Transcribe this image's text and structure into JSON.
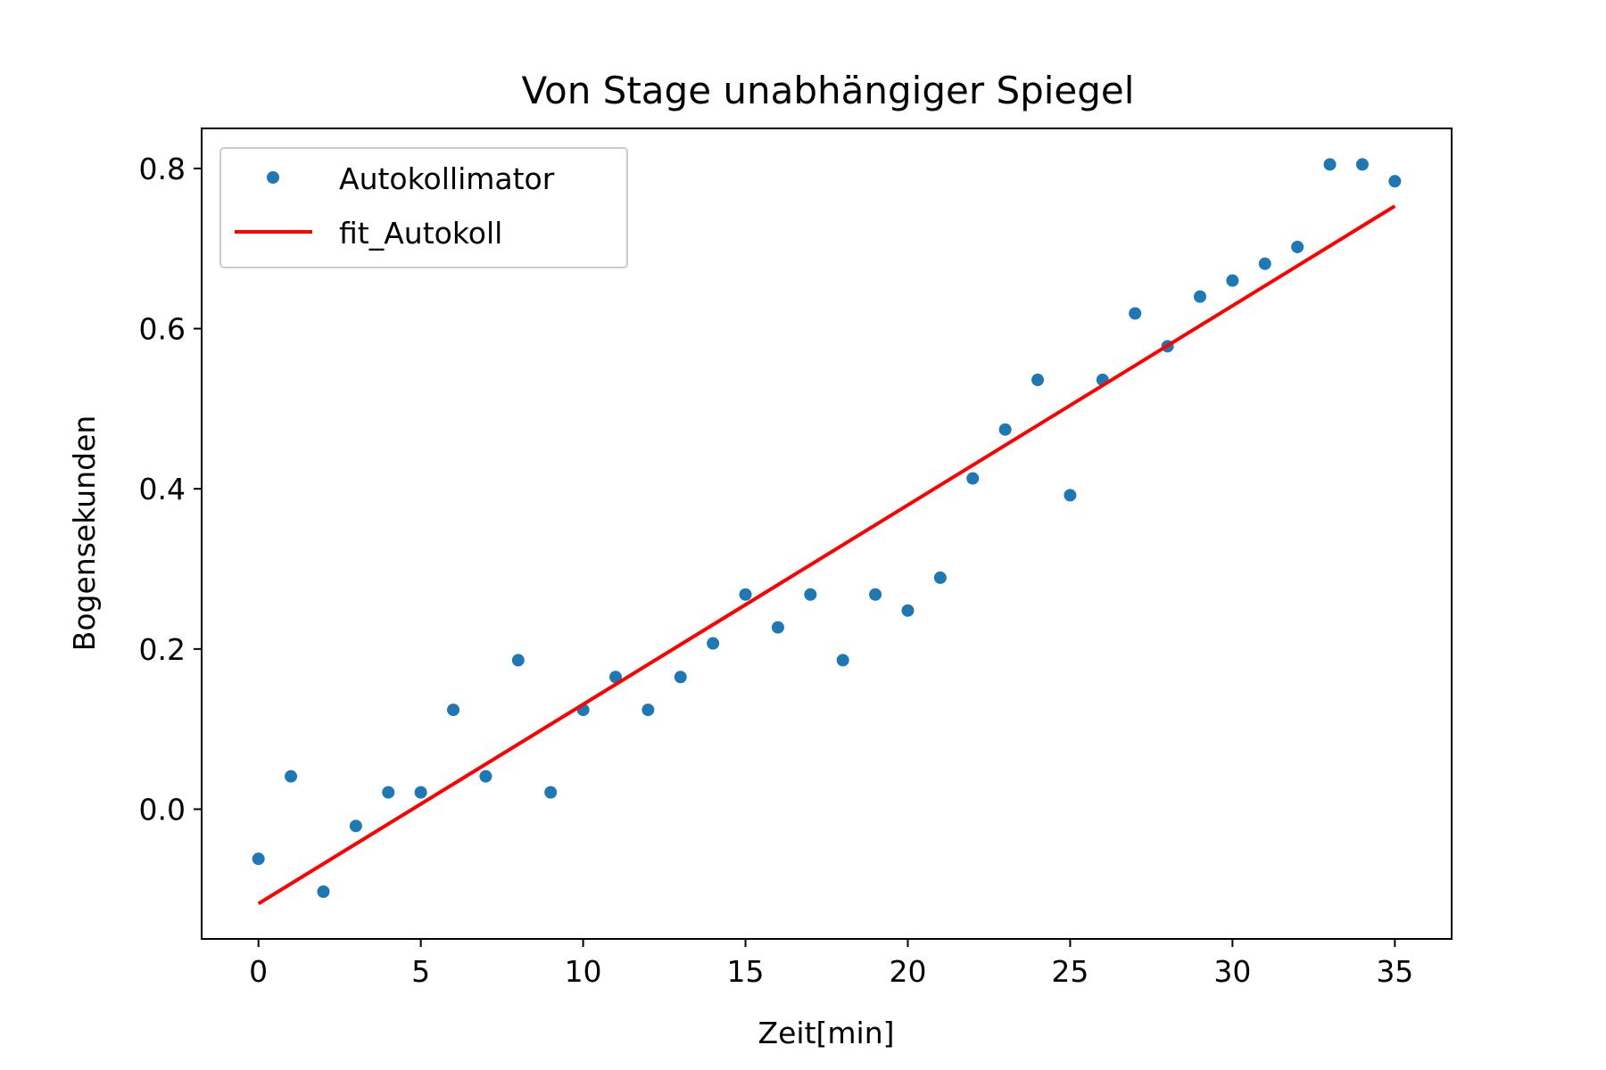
{
  "chart_data": {
    "type": "scatter",
    "title": "Von Stage unabhängiger Spiegel",
    "xlabel": "Zeit[min]",
    "ylabel": "Bogensekunden",
    "xlim": [
      -1.75,
      36.75
    ],
    "ylim": [
      -0.162,
      0.85
    ],
    "x_ticks": [
      0,
      5,
      10,
      15,
      20,
      25,
      30,
      35
    ],
    "x_tick_labels": [
      "0",
      "5",
      "10",
      "15",
      "20",
      "25",
      "30",
      "35"
    ],
    "y_ticks": [
      0.0,
      0.2,
      0.4,
      0.6,
      0.8
    ],
    "y_tick_labels": [
      "0.0",
      "0.2",
      "0.4",
      "0.6",
      "0.8"
    ],
    "grid": false,
    "legend_position": "top-left",
    "series": [
      {
        "name": "Autokollimator",
        "kind": "points",
        "color": "#1f77b4",
        "x": [
          0,
          1,
          2,
          3,
          4,
          5,
          6,
          7,
          8,
          9,
          10,
          11,
          12,
          13,
          14,
          15,
          16,
          17,
          18,
          19,
          20,
          21,
          22,
          23,
          24,
          25,
          26,
          27,
          28,
          29,
          30,
          31,
          32,
          33,
          34,
          35
        ],
        "y": [
          -0.062,
          0.041,
          -0.103,
          -0.021,
          0.021,
          0.021,
          0.124,
          0.041,
          0.186,
          0.021,
          0.124,
          0.165,
          0.124,
          0.165,
          0.207,
          0.268,
          0.227,
          0.268,
          0.186,
          0.268,
          0.248,
          0.289,
          0.413,
          0.474,
          0.536,
          0.392,
          0.536,
          0.619,
          0.578,
          0.64,
          0.66,
          0.681,
          0.702,
          0.805,
          0.805,
          0.784
        ]
      },
      {
        "name": "fit_Autokoll",
        "kind": "line",
        "color": "#ff0000",
        "x": [
          0,
          35
        ],
        "y": [
          -0.118,
          0.753
        ]
      }
    ]
  }
}
